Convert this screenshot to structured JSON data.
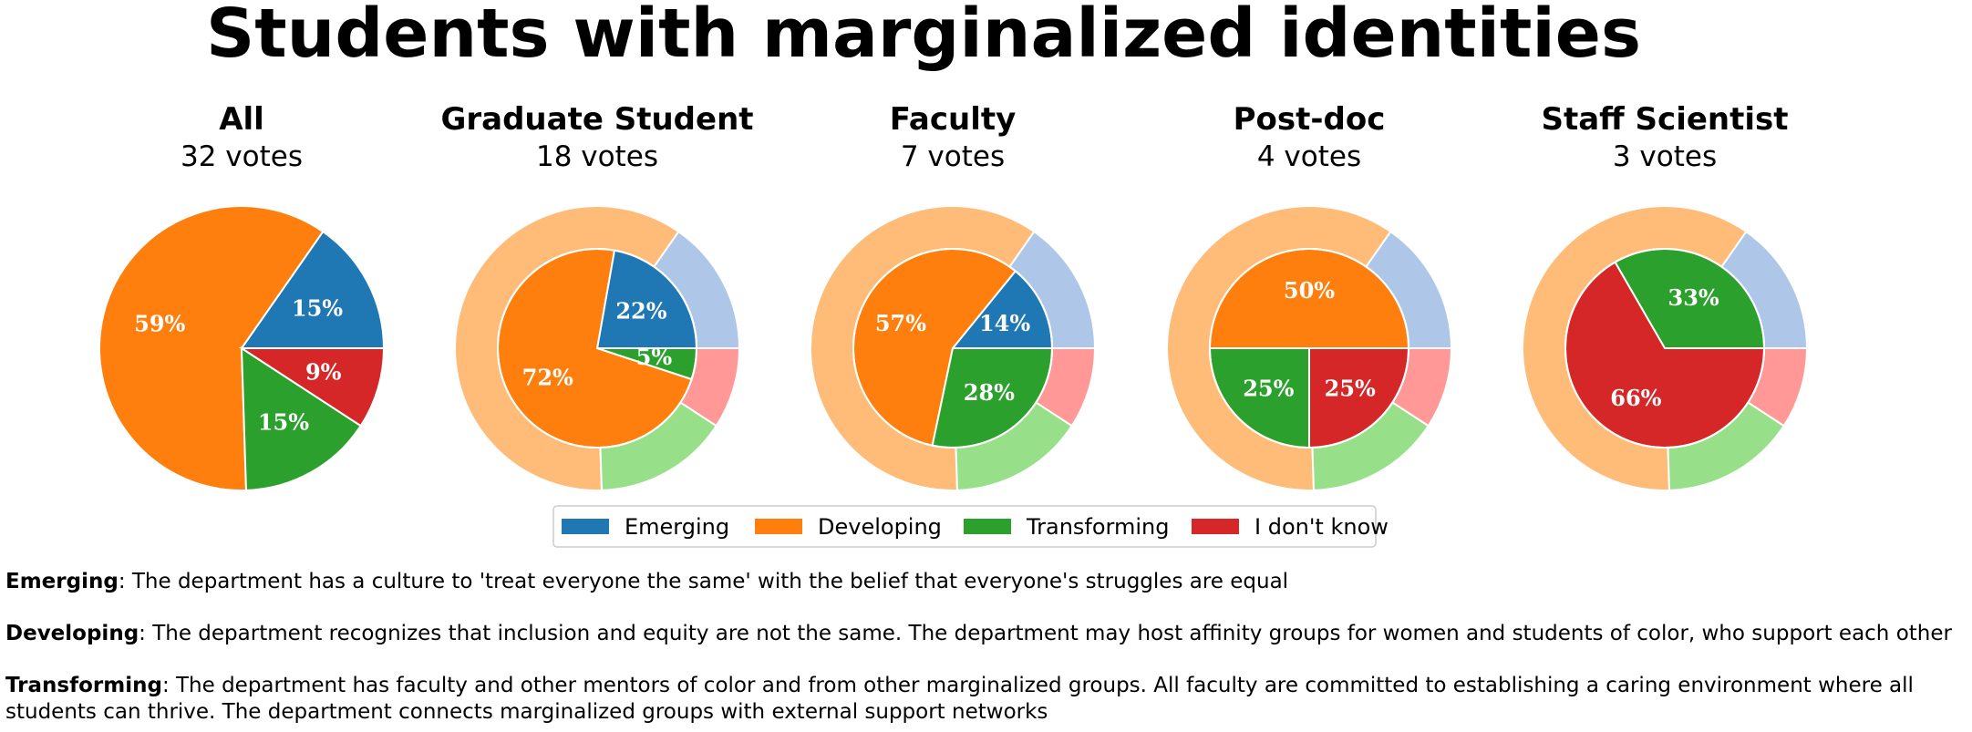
{
  "chart_data": {
    "type": "pie",
    "title": "Students with marginalized identities",
    "categories": [
      "Emerging",
      "Developing",
      "Transforming",
      "I don't know"
    ],
    "colors": [
      "#1f77b4",
      "#ff7f0e",
      "#2ca02c",
      "#d62728"
    ],
    "light_colors": [
      "#aec7e8",
      "#ffbb78",
      "#98df8a",
      "#ff9896"
    ],
    "overall_values": [
      15,
      59,
      15,
      9
    ],
    "votes_suffix": "votes",
    "panels": [
      {
        "title": "All",
        "votes": 32,
        "votes_label": "32 votes",
        "values": [
          15,
          59,
          15,
          9
        ],
        "labels": [
          "15%",
          "59%",
          "15%",
          "9%"
        ]
      },
      {
        "title": "Graduate Student",
        "votes": 18,
        "votes_label": "18 votes",
        "values": [
          22,
          72,
          5,
          0
        ],
        "labels": [
          "22%",
          "72%",
          "5%",
          ""
        ]
      },
      {
        "title": "Faculty",
        "votes": 7,
        "votes_label": "7 votes",
        "values": [
          14,
          57,
          28,
          0
        ],
        "labels": [
          "14%",
          "57%",
          "28%",
          ""
        ]
      },
      {
        "title": "Post-doc",
        "votes": 4,
        "votes_label": "4 votes",
        "values": [
          0,
          50,
          25,
          25
        ],
        "labels": [
          "",
          "50%",
          "25%",
          "25%"
        ]
      },
      {
        "title": "Staff Scientist",
        "votes": 3,
        "votes_label": "3 votes",
        "values": [
          0,
          0,
          33,
          66
        ],
        "labels": [
          "",
          "",
          "33%",
          "66%"
        ]
      }
    ],
    "legend": [
      "Emerging",
      "Developing",
      "Transforming",
      "I don't know"
    ],
    "legend_position": "bottom-center"
  },
  "descriptions": [
    {
      "term": "Emerging",
      "text": ": The department has a culture to 'treat everyone the same' with the belief that everyone's struggles are equal"
    },
    {
      "term": "Developing",
      "text": ": The department recognizes that inclusion and equity are not the same. The department may host affinity groups for women and students of color, who support each other"
    },
    {
      "term": "Transforming",
      "text": ": The department has faculty and other mentors of color and from other marginalized groups. All faculty are committed to establishing a caring environment where all students can thrive. The department connects marginalized groups with external support networks"
    }
  ]
}
